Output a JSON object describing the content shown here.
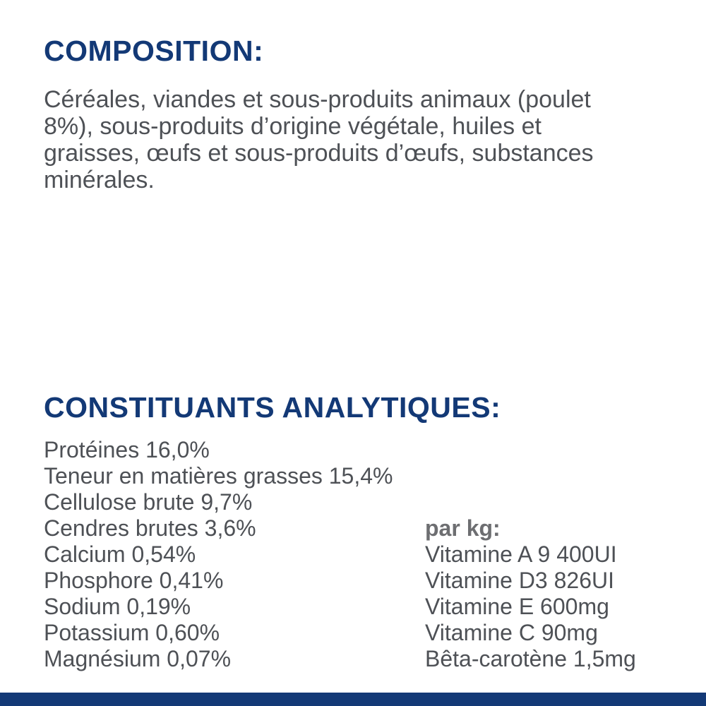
{
  "colors": {
    "brand_blue": "#133976",
    "body_text_gray": "#4e5156",
    "per_kg_gray": "#6d6e71",
    "background": "#ffffff"
  },
  "composition": {
    "heading": "COMPOSITION:",
    "lines": [
      "Céréales, viandes et sous-produits animaux (poulet",
      "8%), sous-produits d’origine végétale, huiles et",
      "graisses, œufs et sous-produits d’œufs, substances",
      "minérales."
    ]
  },
  "analytical": {
    "heading": "CONSTITUANTS ANALYTIQUES:",
    "nutrients": [
      "Protéines 16,0%",
      "Teneur en matières grasses 15,4%",
      "Cellulose brute 9,7%",
      "Cendres brutes 3,6%",
      "Calcium 0,54%",
      "Phosphore 0,41%",
      "Sodium 0,19%",
      "Potassium 0,60%",
      "Magnésium 0,07%"
    ],
    "per_kg_label": "par kg:",
    "vitamins": [
      "Vitamine A 9 400UI",
      "Vitamine D3 826UI",
      "Vitamine E 600mg",
      "Vitamine C 90mg",
      "Bêta-carotène 1,5mg"
    ]
  }
}
